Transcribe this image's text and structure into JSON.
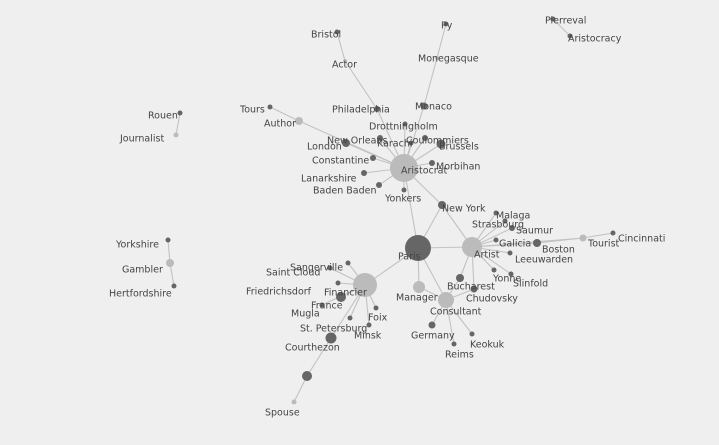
{
  "colors": {
    "background": "#efefef",
    "edge": "#c2c2c2",
    "dark": "#666666",
    "light": "#bbbbbb",
    "label": "#444444"
  },
  "nodes": [
    {
      "id": "paris",
      "label": "Paris",
      "tone": "dark",
      "weight": 13
    },
    {
      "id": "aristocrat",
      "label": "Aristocrat",
      "tone": "light",
      "weight": 14
    },
    {
      "id": "artist",
      "label": "Artist",
      "tone": "light",
      "weight": 10
    },
    {
      "id": "financier",
      "label": "Financier",
      "tone": "light",
      "weight": 12
    },
    {
      "id": "consultant",
      "label": "Consultant",
      "tone": "light",
      "weight": 8
    },
    {
      "id": "manager",
      "label": "Manager",
      "tone": "light",
      "weight": 6
    },
    {
      "id": "philadelphia",
      "label": "Philadelphia",
      "tone": "dark",
      "weight": 3
    },
    {
      "id": "actor",
      "label": "Actor",
      "tone": "light",
      "weight": 2
    },
    {
      "id": "bristol",
      "label": "Bristol",
      "tone": "dark",
      "weight": 2.5
    },
    {
      "id": "monaco",
      "label": "Monaco",
      "tone": "dark",
      "weight": 3.5
    },
    {
      "id": "monegasque",
      "label": "Monegasque",
      "tone": "light",
      "weight": 2
    },
    {
      "id": "py",
      "label": "Py",
      "tone": "dark",
      "weight": 2.5
    },
    {
      "id": "pierreval",
      "label": "Pierreval",
      "tone": "dark",
      "weight": 2.5
    },
    {
      "id": "aristocracy",
      "label": "Aristocracy",
      "tone": "dark",
      "weight": 2.5
    },
    {
      "id": "rouen",
      "label": "Rouen",
      "tone": "dark",
      "weight": 2.5
    },
    {
      "id": "journalist",
      "label": "Journalist",
      "tone": "light",
      "weight": 2.5
    },
    {
      "id": "tours",
      "label": "Tours",
      "tone": "dark",
      "weight": 2.5
    },
    {
      "id": "author",
      "label": "Author",
      "tone": "light",
      "weight": 4
    },
    {
      "id": "drottningholm",
      "label": "Drottningholm",
      "tone": "dark",
      "weight": 2.5
    },
    {
      "id": "neworleans",
      "label": "New Orleans",
      "tone": "dark",
      "weight": 3
    },
    {
      "id": "karachi",
      "label": "Karachi",
      "tone": "dark",
      "weight": 2.5
    },
    {
      "id": "coulommiers",
      "label": "Coulommiers",
      "tone": "dark",
      "weight": 3
    },
    {
      "id": "london",
      "label": "London",
      "tone": "dark",
      "weight": 4
    },
    {
      "id": "brussels",
      "label": "Brussels",
      "tone": "dark",
      "weight": 4.5
    },
    {
      "id": "constantine",
      "label": "Constantine",
      "tone": "dark",
      "weight": 3
    },
    {
      "id": "morbihan",
      "label": "Morbihan",
      "tone": "dark",
      "weight": 3
    },
    {
      "id": "lanarkshire",
      "label": "Lanarkshire",
      "tone": "dark",
      "weight": 3
    },
    {
      "id": "badenbaden",
      "label": "Baden Baden",
      "tone": "dark",
      "weight": 3
    },
    {
      "id": "yonkers",
      "label": "Yonkers",
      "tone": "dark",
      "weight": 2.5
    },
    {
      "id": "newyork",
      "label": "New York",
      "tone": "dark",
      "weight": 4
    },
    {
      "id": "malaga",
      "label": "Malaga",
      "tone": "dark",
      "weight": 2.5
    },
    {
      "id": "strasbourg",
      "label": "Strasbourg",
      "tone": "dark",
      "weight": 2.5
    },
    {
      "id": "saumur",
      "label": "Saumur",
      "tone": "dark",
      "weight": 3
    },
    {
      "id": "galicia",
      "label": "Galicia",
      "tone": "dark",
      "weight": 2.5
    },
    {
      "id": "boston",
      "label": "Boston",
      "tone": "dark",
      "weight": 4
    },
    {
      "id": "tourist",
      "label": "Tourist",
      "tone": "light",
      "weight": 3.5
    },
    {
      "id": "cincinnati",
      "label": "Cincinnati",
      "tone": "dark",
      "weight": 2.5
    },
    {
      "id": "leeuwarden",
      "label": "Leeuwarden",
      "tone": "dark",
      "weight": 2.5
    },
    {
      "id": "yonne",
      "label": "Yonne",
      "tone": "dark",
      "weight": 2.5
    },
    {
      "id": "slinfold",
      "label": "Slinfold",
      "tone": "dark",
      "weight": 2.5
    },
    {
      "id": "bucharest",
      "label": "Bucharest",
      "tone": "dark",
      "weight": 4
    },
    {
      "id": "chudovsky",
      "label": "Chudovsky",
      "tone": "dark",
      "weight": 3.5
    },
    {
      "id": "germany",
      "label": "Germany",
      "tone": "dark",
      "weight": 3.5
    },
    {
      "id": "keokuk",
      "label": "Keokuk",
      "tone": "dark",
      "weight": 2.5
    },
    {
      "id": "reims",
      "label": "Reims",
      "tone": "dark",
      "weight": 2.5
    },
    {
      "id": "sangerville",
      "label": "Sangerville",
      "tone": "dark",
      "weight": 2.5
    },
    {
      "id": "saintcloud",
      "label": "Saint Cloud",
      "tone": "dark",
      "weight": 2.5
    },
    {
      "id": "friedrichsdorf",
      "label": "Friedrichsdorf",
      "tone": "dark",
      "weight": 2.5
    },
    {
      "id": "france",
      "label": "France",
      "tone": "dark",
      "weight": 5
    },
    {
      "id": "mugla",
      "label": "Mugla",
      "tone": "dark",
      "weight": 2.5
    },
    {
      "id": "foix",
      "label": "Foix",
      "tone": "dark",
      "weight": 2.5
    },
    {
      "id": "stpetersburg",
      "label": "St. Petersburg",
      "tone": "dark",
      "weight": 2.5
    },
    {
      "id": "minsk",
      "label": "Minsk",
      "tone": "dark",
      "weight": 2.5
    },
    {
      "id": "courthezon",
      "label": "Courthezon",
      "tone": "dark",
      "weight": 5.5
    },
    {
      "id": "spousehub",
      "label": "",
      "tone": "dark",
      "weight": 5
    },
    {
      "id": "spouse",
      "label": "Spouse",
      "tone": "light",
      "weight": 2.5
    },
    {
      "id": "yorkshire",
      "label": "Yorkshire",
      "tone": "dark",
      "weight": 2.5
    },
    {
      "id": "gambler",
      "label": "Gambler",
      "tone": "light",
      "weight": 4
    },
    {
      "id": "hertfordshire",
      "label": "Hertfordshire",
      "tone": "dark",
      "weight": 2.5
    }
  ],
  "edges": [
    [
      "paris",
      "aristocrat"
    ],
    [
      "paris",
      "artist"
    ],
    [
      "paris",
      "financier"
    ],
    [
      "paris",
      "consultant"
    ],
    [
      "paris",
      "manager"
    ],
    [
      "paris",
      "newyork"
    ],
    [
      "aristocrat",
      "philadelphia"
    ],
    [
      "aristocrat",
      "monaco"
    ],
    [
      "aristocrat",
      "author"
    ],
    [
      "aristocrat",
      "drottningholm"
    ],
    [
      "aristocrat",
      "neworleans"
    ],
    [
      "aristocrat",
      "karachi"
    ],
    [
      "aristocrat",
      "coulommiers"
    ],
    [
      "aristocrat",
      "london"
    ],
    [
      "aristocrat",
      "brussels"
    ],
    [
      "aristocrat",
      "constantine"
    ],
    [
      "aristocrat",
      "morbihan"
    ],
    [
      "aristocrat",
      "lanarkshire"
    ],
    [
      "aristocrat",
      "badenbaden"
    ],
    [
      "aristocrat",
      "yonkers"
    ],
    [
      "aristocrat",
      "newyork"
    ],
    [
      "philadelphia",
      "actor"
    ],
    [
      "actor",
      "bristol"
    ],
    [
      "monaco",
      "monegasque"
    ],
    [
      "monegasque",
      "py"
    ],
    [
      "author",
      "tours"
    ],
    [
      "pierreval",
      "aristocracy"
    ],
    [
      "rouen",
      "journalist"
    ],
    [
      "yorkshire",
      "gambler"
    ],
    [
      "gambler",
      "hertfordshire"
    ],
    [
      "artist",
      "newyork"
    ],
    [
      "artist",
      "malaga"
    ],
    [
      "artist",
      "strasbourg"
    ],
    [
      "artist",
      "saumur"
    ],
    [
      "artist",
      "galicia"
    ],
    [
      "artist",
      "boston"
    ],
    [
      "artist",
      "tourist"
    ],
    [
      "artist",
      "leeuwarden"
    ],
    [
      "artist",
      "yonne"
    ],
    [
      "artist",
      "slinfold"
    ],
    [
      "artist",
      "bucharest"
    ],
    [
      "artist",
      "chudovsky"
    ],
    [
      "tourist",
      "cincinnati"
    ],
    [
      "boston",
      "tourist"
    ],
    [
      "consultant",
      "bucharest"
    ],
    [
      "consultant",
      "chudovsky"
    ],
    [
      "consultant",
      "germany"
    ],
    [
      "consultant",
      "keokuk"
    ],
    [
      "consultant",
      "reims"
    ],
    [
      "consultant",
      "manager"
    ],
    [
      "financier",
      "sangerville"
    ],
    [
      "financier",
      "saintcloud"
    ],
    [
      "financier",
      "friedrichsdorf"
    ],
    [
      "financier",
      "france"
    ],
    [
      "financier",
      "mugla"
    ],
    [
      "financier",
      "foix"
    ],
    [
      "financier",
      "stpetersburg"
    ],
    [
      "financier",
      "minsk"
    ],
    [
      "financier",
      "courthezon"
    ],
    [
      "courthezon",
      "spousehub"
    ],
    [
      "spousehub",
      "spouse"
    ]
  ]
}
